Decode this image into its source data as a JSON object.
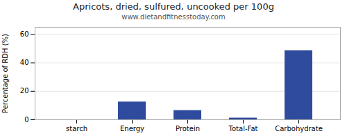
{
  "chart_data": {
    "type": "bar",
    "title": "Apricots, dried, sulfured, uncooked per 100g",
    "subtitle": "www.dietandfitnesstoday.com",
    "categories": [
      "starch",
      "Energy",
      "Protein",
      "Total-Fat",
      "Carbohydrate"
    ],
    "values": [
      0,
      12.5,
      6.5,
      1.2,
      48.5
    ],
    "color": "#2e4b9e",
    "ylabel": "Percentage of RDH (%)",
    "ylim": [
      0,
      65
    ],
    "yticks": [
      0,
      20,
      40,
      60
    ],
    "grid": true
  }
}
